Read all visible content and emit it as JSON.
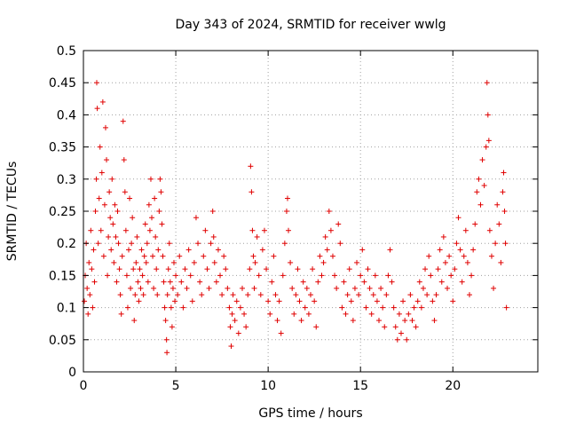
{
  "chart_data": {
    "type": "scatter",
    "title": "Day 343 of 2024, SRMTID for receiver wwlg",
    "xlabel": "GPS time / hours",
    "ylabel": "SRMTID / TECUs",
    "xlim": [
      0,
      24.6
    ],
    "ylim": [
      0,
      0.5
    ],
    "xticks": [
      0,
      5,
      10,
      15,
      20
    ],
    "xtick_labels": [
      "0",
      "5",
      "10",
      "15",
      "20"
    ],
    "yticks": [
      0,
      0.05,
      0.1,
      0.15,
      0.2,
      0.25,
      0.3,
      0.35,
      0.4,
      0.45,
      0.5
    ],
    "ytick_labels": [
      "0",
      "0.05",
      "0.1",
      "0.15",
      "0.2",
      "0.25",
      "0.3",
      "0.35",
      "0.4",
      "0.45",
      "0.5"
    ],
    "grid": true,
    "marker": "+",
    "color": "#e00000",
    "series": [
      {
        "name": "SRMTID",
        "points": [
          [
            0.05,
            0.11
          ],
          [
            0.1,
            0.15
          ],
          [
            0.15,
            0.2
          ],
          [
            0.2,
            0.13
          ],
          [
            0.25,
            0.09
          ],
          [
            0.3,
            0.17
          ],
          [
            0.35,
            0.12
          ],
          [
            0.4,
            0.22
          ],
          [
            0.45,
            0.16
          ],
          [
            0.5,
            0.1
          ],
          [
            0.55,
            0.19
          ],
          [
            0.6,
            0.14
          ],
          [
            0.65,
            0.25
          ],
          [
            0.7,
            0.3
          ],
          [
            0.72,
            0.45
          ],
          [
            0.75,
            0.41
          ],
          [
            0.8,
            0.2
          ],
          [
            0.85,
            0.27
          ],
          [
            0.9,
            0.35
          ],
          [
            0.95,
            0.22
          ],
          [
            1.0,
            0.31
          ],
          [
            1.05,
            0.42
          ],
          [
            1.1,
            0.18
          ],
          [
            1.15,
            0.26
          ],
          [
            1.2,
            0.38
          ],
          [
            1.25,
            0.33
          ],
          [
            1.3,
            0.15
          ],
          [
            1.35,
            0.21
          ],
          [
            1.4,
            0.28
          ],
          [
            1.45,
            0.24
          ],
          [
            1.5,
            0.19
          ],
          [
            1.55,
            0.3
          ],
          [
            1.6,
            0.23
          ],
          [
            1.65,
            0.17
          ],
          [
            1.7,
            0.26
          ],
          [
            1.75,
            0.21
          ],
          [
            1.8,
            0.14
          ],
          [
            1.85,
            0.25
          ],
          [
            1.9,
            0.2
          ],
          [
            1.95,
            0.16
          ],
          [
            2.0,
            0.12
          ],
          [
            2.05,
            0.09
          ],
          [
            2.1,
            0.18
          ],
          [
            2.15,
            0.39
          ],
          [
            2.2,
            0.33
          ],
          [
            2.25,
            0.28
          ],
          [
            2.3,
            0.22
          ],
          [
            2.35,
            0.15
          ],
          [
            2.4,
            0.1
          ],
          [
            2.45,
            0.19
          ],
          [
            2.5,
            0.27
          ],
          [
            2.55,
            0.13
          ],
          [
            2.6,
            0.2
          ],
          [
            2.65,
            0.24
          ],
          [
            2.7,
            0.16
          ],
          [
            2.75,
            0.08
          ],
          [
            2.8,
            0.12
          ],
          [
            2.85,
            0.17
          ],
          [
            2.9,
            0.21
          ],
          [
            2.95,
            0.14
          ],
          [
            3.0,
            0.11
          ],
          [
            3.05,
            0.16
          ],
          [
            3.1,
            0.13
          ],
          [
            3.15,
            0.19
          ],
          [
            3.2,
            0.15
          ],
          [
            3.25,
            0.12
          ],
          [
            3.3,
            0.18
          ],
          [
            3.35,
            0.23
          ],
          [
            3.4,
            0.17
          ],
          [
            3.45,
            0.2
          ],
          [
            3.5,
            0.14
          ],
          [
            3.55,
            0.26
          ],
          [
            3.6,
            0.22
          ],
          [
            3.65,
            0.3
          ],
          [
            3.7,
            0.24
          ],
          [
            3.75,
            0.18
          ],
          [
            3.8,
            0.13
          ],
          [
            3.85,
            0.27
          ],
          [
            3.9,
            0.21
          ],
          [
            3.95,
            0.16
          ],
          [
            4.0,
            0.12
          ],
          [
            4.05,
            0.19
          ],
          [
            4.1,
            0.25
          ],
          [
            4.15,
            0.3
          ],
          [
            4.2,
            0.28
          ],
          [
            4.25,
            0.23
          ],
          [
            4.3,
            0.18
          ],
          [
            4.35,
            0.14
          ],
          [
            4.4,
            0.1
          ],
          [
            4.45,
            0.08
          ],
          [
            4.5,
            0.05
          ],
          [
            4.52,
            0.03
          ],
          [
            4.55,
            0.12
          ],
          [
            4.6,
            0.16
          ],
          [
            4.65,
            0.2
          ],
          [
            4.7,
            0.14
          ],
          [
            4.75,
            0.1
          ],
          [
            4.8,
            0.07
          ],
          [
            4.85,
            0.13
          ],
          [
            4.9,
            0.17
          ],
          [
            4.95,
            0.11
          ],
          [
            5.0,
            0.15
          ],
          [
            5.1,
            0.12
          ],
          [
            5.2,
            0.18
          ],
          [
            5.3,
            0.14
          ],
          [
            5.4,
            0.1
          ],
          [
            5.5,
            0.16
          ],
          [
            5.6,
            0.13
          ],
          [
            5.7,
            0.19
          ],
          [
            5.8,
            0.15
          ],
          [
            5.9,
            0.11
          ],
          [
            6.0,
            0.17
          ],
          [
            6.1,
            0.24
          ],
          [
            6.2,
            0.2
          ],
          [
            6.3,
            0.14
          ],
          [
            6.4,
            0.12
          ],
          [
            6.5,
            0.18
          ],
          [
            6.6,
            0.22
          ],
          [
            6.7,
            0.16
          ],
          [
            6.8,
            0.13
          ],
          [
            6.9,
            0.2
          ],
          [
            7.0,
            0.25
          ],
          [
            7.05,
            0.21
          ],
          [
            7.1,
            0.17
          ],
          [
            7.2,
            0.14
          ],
          [
            7.3,
            0.19
          ],
          [
            7.4,
            0.15
          ],
          [
            7.5,
            0.12
          ],
          [
            7.6,
            0.18
          ],
          [
            7.7,
            0.16
          ],
          [
            7.8,
            0.13
          ],
          [
            7.9,
            0.1
          ],
          [
            7.95,
            0.07
          ],
          [
            8.0,
            0.04
          ],
          [
            8.05,
            0.09
          ],
          [
            8.1,
            0.12
          ],
          [
            8.2,
            0.08
          ],
          [
            8.3,
            0.11
          ],
          [
            8.4,
            0.06
          ],
          [
            8.5,
            0.1
          ],
          [
            8.6,
            0.13
          ],
          [
            8.7,
            0.09
          ],
          [
            8.8,
            0.07
          ],
          [
            8.9,
            0.12
          ],
          [
            9.0,
            0.16
          ],
          [
            9.05,
            0.32
          ],
          [
            9.1,
            0.28
          ],
          [
            9.15,
            0.22
          ],
          [
            9.2,
            0.18
          ],
          [
            9.25,
            0.13
          ],
          [
            9.3,
            0.17
          ],
          [
            9.4,
            0.21
          ],
          [
            9.5,
            0.15
          ],
          [
            9.6,
            0.12
          ],
          [
            9.7,
            0.19
          ],
          [
            9.8,
            0.22
          ],
          [
            9.9,
            0.16
          ],
          [
            10.0,
            0.11
          ],
          [
            10.1,
            0.09
          ],
          [
            10.2,
            0.14
          ],
          [
            10.3,
            0.18
          ],
          [
            10.4,
            0.12
          ],
          [
            10.5,
            0.08
          ],
          [
            10.6,
            0.11
          ],
          [
            10.7,
            0.06
          ],
          [
            10.8,
            0.15
          ],
          [
            10.9,
            0.2
          ],
          [
            11.0,
            0.25
          ],
          [
            11.05,
            0.27
          ],
          [
            11.1,
            0.22
          ],
          [
            11.2,
            0.17
          ],
          [
            11.3,
            0.13
          ],
          [
            11.4,
            0.09
          ],
          [
            11.5,
            0.12
          ],
          [
            11.6,
            0.16
          ],
          [
            11.7,
            0.11
          ],
          [
            11.8,
            0.08
          ],
          [
            11.9,
            0.14
          ],
          [
            12.0,
            0.1
          ],
          [
            12.1,
            0.13
          ],
          [
            12.2,
            0.09
          ],
          [
            12.3,
            0.12
          ],
          [
            12.4,
            0.16
          ],
          [
            12.5,
            0.11
          ],
          [
            12.6,
            0.07
          ],
          [
            12.7,
            0.14
          ],
          [
            12.8,
            0.18
          ],
          [
            12.9,
            0.15
          ],
          [
            13.0,
            0.17
          ],
          [
            13.1,
            0.21
          ],
          [
            13.2,
            0.19
          ],
          [
            13.3,
            0.25
          ],
          [
            13.4,
            0.22
          ],
          [
            13.5,
            0.18
          ],
          [
            13.6,
            0.15
          ],
          [
            13.7,
            0.13
          ],
          [
            13.8,
            0.23
          ],
          [
            13.9,
            0.2
          ],
          [
            14.0,
            0.1
          ],
          [
            14.1,
            0.14
          ],
          [
            14.2,
            0.09
          ],
          [
            14.3,
            0.12
          ],
          [
            14.4,
            0.16
          ],
          [
            14.5,
            0.11
          ],
          [
            14.6,
            0.08
          ],
          [
            14.7,
            0.13
          ],
          [
            14.8,
            0.17
          ],
          [
            14.9,
            0.12
          ],
          [
            15.0,
            0.15
          ],
          [
            15.1,
            0.19
          ],
          [
            15.2,
            0.14
          ],
          [
            15.3,
            0.1
          ],
          [
            15.4,
            0.16
          ],
          [
            15.5,
            0.13
          ],
          [
            15.6,
            0.09
          ],
          [
            15.7,
            0.12
          ],
          [
            15.8,
            0.15
          ],
          [
            15.9,
            0.11
          ],
          [
            16.0,
            0.08
          ],
          [
            16.1,
            0.13
          ],
          [
            16.2,
            0.1
          ],
          [
            16.3,
            0.07
          ],
          [
            16.4,
            0.12
          ],
          [
            16.5,
            0.15
          ],
          [
            16.6,
            0.19
          ],
          [
            16.7,
            0.14
          ],
          [
            16.8,
            0.1
          ],
          [
            16.9,
            0.07
          ],
          [
            17.0,
            0.05
          ],
          [
            17.1,
            0.09
          ],
          [
            17.2,
            0.06
          ],
          [
            17.3,
            0.11
          ],
          [
            17.4,
            0.08
          ],
          [
            17.5,
            0.05
          ],
          [
            17.6,
            0.09
          ],
          [
            17.7,
            0.12
          ],
          [
            17.8,
            0.08
          ],
          [
            17.9,
            0.1
          ],
          [
            18.0,
            0.07
          ],
          [
            18.1,
            0.11
          ],
          [
            18.2,
            0.14
          ],
          [
            18.3,
            0.1
          ],
          [
            18.4,
            0.13
          ],
          [
            18.5,
            0.16
          ],
          [
            18.6,
            0.12
          ],
          [
            18.7,
            0.18
          ],
          [
            18.8,
            0.15
          ],
          [
            18.9,
            0.11
          ],
          [
            19.0,
            0.08
          ],
          [
            19.1,
            0.12
          ],
          [
            19.2,
            0.16
          ],
          [
            19.3,
            0.19
          ],
          [
            19.4,
            0.14
          ],
          [
            19.5,
            0.21
          ],
          [
            19.6,
            0.17
          ],
          [
            19.7,
            0.13
          ],
          [
            19.8,
            0.18
          ],
          [
            19.9,
            0.15
          ],
          [
            20.0,
            0.11
          ],
          [
            20.1,
            0.16
          ],
          [
            20.2,
            0.2
          ],
          [
            20.3,
            0.24
          ],
          [
            20.4,
            0.19
          ],
          [
            20.5,
            0.14
          ],
          [
            20.6,
            0.18
          ],
          [
            20.7,
            0.22
          ],
          [
            20.8,
            0.17
          ],
          [
            20.9,
            0.12
          ],
          [
            21.0,
            0.15
          ],
          [
            21.1,
            0.19
          ],
          [
            21.2,
            0.23
          ],
          [
            21.3,
            0.28
          ],
          [
            21.4,
            0.3
          ],
          [
            21.5,
            0.26
          ],
          [
            21.6,
            0.33
          ],
          [
            21.7,
            0.29
          ],
          [
            21.8,
            0.35
          ],
          [
            21.85,
            0.45
          ],
          [
            21.9,
            0.4
          ],
          [
            21.95,
            0.36
          ],
          [
            22.0,
            0.22
          ],
          [
            22.1,
            0.18
          ],
          [
            22.2,
            0.13
          ],
          [
            22.3,
            0.2
          ],
          [
            22.4,
            0.26
          ],
          [
            22.5,
            0.23
          ],
          [
            22.6,
            0.17
          ],
          [
            22.7,
            0.28
          ],
          [
            22.75,
            0.31
          ],
          [
            22.8,
            0.25
          ],
          [
            22.85,
            0.2
          ],
          [
            22.9,
            0.1
          ]
        ]
      }
    ]
  }
}
